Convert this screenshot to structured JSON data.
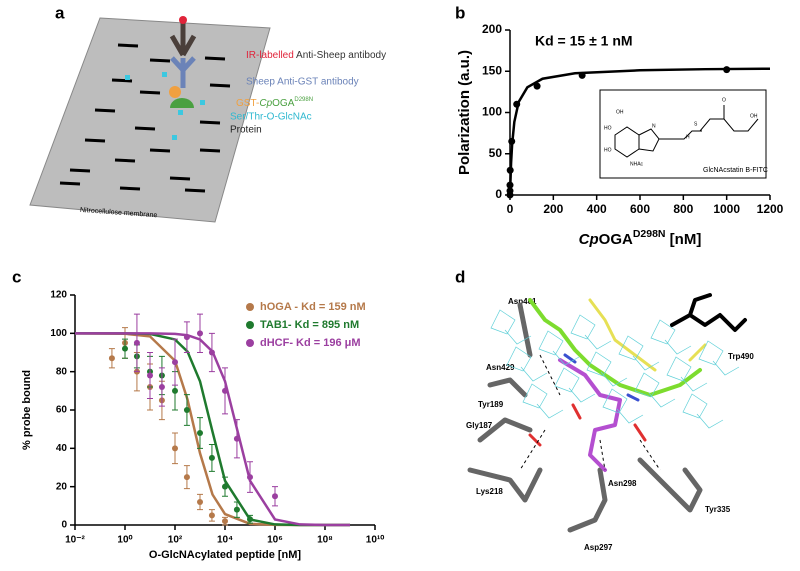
{
  "panel_labels": [
    "a",
    "b",
    "c",
    "d"
  ],
  "diagram": {
    "ir_parts": [
      "IR-labelled",
      " Anti-Sheep antibody"
    ],
    "sheep": "Sheep Anti-GST antibody",
    "gst_parts": [
      "GST-",
      "Cp",
      "OGA",
      "D298N"
    ],
    "glcnac": "Ser/Thr-O-GlcNAc",
    "protein": "Protein",
    "membrane": "Nitrocellulose membrane"
  },
  "chart_data": [
    {
      "type": "scatter",
      "annotation": "Kd = 15 ± 1 nM",
      "ylabel": "Polarization (a.u.)",
      "xlabel": [
        "Cp",
        "OGA",
        "D298N",
        " [nM]"
      ],
      "x": [
        0,
        0,
        0,
        1,
        8,
        31,
        125,
        333,
        1000
      ],
      "values": [
        0,
        5,
        12,
        30,
        65,
        110,
        132,
        145,
        152
      ],
      "color": "#000000",
      "fit_x": [
        0,
        5,
        10,
        20,
        40,
        80,
        150,
        300,
        600,
        900,
        1200
      ],
      "fit_values": [
        0,
        38.75,
        62,
        88.6,
        112.7,
        130.5,
        140.9,
        147.6,
        151.2,
        152.5,
        153.1
      ],
      "xlim": [
        0,
        1200
      ],
      "xticks": [
        0,
        200,
        400,
        600,
        800,
        1000,
        1200
      ],
      "ylim": [
        0,
        200
      ],
      "yticks": [
        0,
        50,
        100,
        150,
        200
      ],
      "inset": {
        "title": "GlcNAcstatin B-FITC",
        "atoms": [
          "HO",
          "HO",
          "OH",
          "NHAc",
          "N",
          "H",
          "S",
          "O",
          "OH"
        ]
      }
    },
    {
      "type": "scatter",
      "ylabel": "% probe bound",
      "xlabel": "O-GlcNAcylated peptide [nM]",
      "xscale": "log",
      "legend": "upper right",
      "xlim": [
        0.01,
        10000000000
      ],
      "xticks": [
        {
          "value": 0.01,
          "label": "10⁻²"
        },
        {
          "value": 1,
          "label": "10⁰"
        },
        {
          "value": 100,
          "label": "10²"
        },
        {
          "value": 10000,
          "label": "10⁴"
        },
        {
          "value": 1000000,
          "label": "10⁶"
        },
        {
          "value": 100000000,
          "label": "10⁸"
        },
        {
          "value": 10000000000,
          "label": "10¹⁰"
        }
      ],
      "ylim": [
        0,
        120
      ],
      "yticks": [
        0,
        20,
        40,
        60,
        80,
        100,
        120
      ],
      "fit_x": [
        0.01,
        1,
        10,
        100,
        316,
        1000,
        3162,
        10000,
        100000,
        1000000,
        10000000,
        100000000,
        1000000000
      ],
      "series": [
        {
          "name": "hOGA - Kd = 159 nM",
          "color": "#b5794a",
          "x": [
            0.3,
            1,
            3,
            10,
            30,
            100,
            300,
            1000,
            3000,
            10000
          ],
          "values": [
            87,
            95,
            80,
            72,
            65,
            40,
            25,
            12,
            5,
            2
          ],
          "errors": [
            5,
            8,
            10,
            12,
            10,
            8,
            6,
            4,
            3,
            2
          ],
          "fit_values": [
            100,
            99.8,
            98.4,
            85.7,
            65.5,
            37.5,
            15.9,
            5.7,
            0.6,
            0.06,
            0,
            0,
            0
          ]
        },
        {
          "name": "TAB1- Kd = 895 nM",
          "color": "#1f7a2e",
          "x": [
            1,
            3,
            10,
            30,
            100,
            300,
            1000,
            3000,
            10000,
            30000,
            100000
          ],
          "values": [
            92,
            88,
            80,
            78,
            70,
            60,
            48,
            35,
            20,
            8,
            3
          ],
          "errors": [
            5,
            6,
            8,
            10,
            10,
            8,
            8,
            7,
            5,
            4,
            2
          ],
          "fit_values": [
            100,
            100,
            99.7,
            96.8,
            90.5,
            75,
            48.7,
            23.1,
            2.9,
            0.3,
            0,
            0,
            0
          ]
        },
        {
          "name": "dHCF- Kd = 196 μM",
          "color": "#9b3fa0",
          "x": [
            3,
            10,
            30,
            100,
            300,
            1000,
            3000,
            10000,
            30000,
            100000,
            1000000
          ],
          "values": [
            95,
            78,
            72,
            85,
            98,
            100,
            90,
            70,
            45,
            25,
            15
          ],
          "errors": [
            15,
            12,
            10,
            12,
            8,
            10,
            10,
            12,
            10,
            8,
            5
          ],
          "fit_values": [
            100,
            100,
            100,
            99.7,
            99,
            96.8,
            90.5,
            75,
            23.1,
            2.9,
            0.3,
            0.03,
            0
          ]
        }
      ]
    }
  ],
  "structure": {
    "residues": [
      "Asp401",
      "Trp490",
      "Asn429",
      "Tyr189",
      "Gly187",
      "Lys218",
      "Asn298",
      "Tyr335",
      "Asp297"
    ]
  }
}
